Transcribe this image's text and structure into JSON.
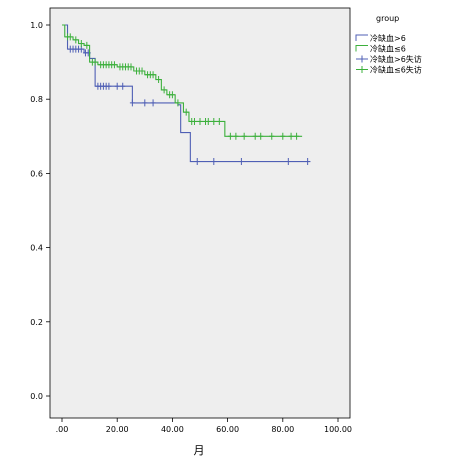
{
  "chart_data": {
    "type": "line",
    "subtype": "kaplan-meier",
    "xlabel": "月",
    "ylabel": "",
    "xlim": [
      0,
      100
    ],
    "ylim": [
      0,
      1.0
    ],
    "x_ticks": [
      ".00",
      "20.00",
      "40.00",
      "60.00",
      "80.00",
      "100.00"
    ],
    "x_tick_values": [
      0,
      20,
      40,
      60,
      80,
      100
    ],
    "y_ticks": [
      "0.0",
      "0.2",
      "0.4",
      "0.6",
      "0.8",
      "1.0"
    ],
    "y_tick_values": [
      0,
      0.2,
      0.4,
      0.6,
      0.8,
      1.0
    ],
    "grid": false,
    "plot_background": "#eeeeee",
    "legend": {
      "title": "group",
      "placement": "outside-right",
      "entries": [
        {
          "label": "冷缺血>6",
          "kind": "line",
          "color": "#4f5fb5"
        },
        {
          "label": "冷缺血≤6",
          "kind": "line",
          "color": "#3cb03c"
        },
        {
          "label": "冷缺血>6失访",
          "kind": "censor",
          "color": "#4f5fb5"
        },
        {
          "label": "冷缺血≤6失访",
          "kind": "censor",
          "color": "#3cb03c"
        }
      ]
    },
    "series": [
      {
        "legend_index": 0,
        "color": "#4f5fb5",
        "steps": [
          [
            0,
            1.0
          ],
          [
            2,
            0.935
          ],
          [
            8,
            0.925
          ],
          [
            10,
            0.91
          ],
          [
            12,
            0.835
          ],
          [
            25.5,
            0.79
          ],
          [
            42,
            0.785
          ],
          [
            43,
            0.71
          ],
          [
            46.5,
            0.632
          ],
          [
            90,
            0.632
          ]
        ],
        "censored": [
          [
            3,
            0.935
          ],
          [
            4,
            0.935
          ],
          [
            5,
            0.935
          ],
          [
            6,
            0.935
          ],
          [
            7,
            0.935
          ],
          [
            8.5,
            0.925
          ],
          [
            9.5,
            0.925
          ],
          [
            13,
            0.835
          ],
          [
            14,
            0.835
          ],
          [
            15,
            0.835
          ],
          [
            16,
            0.835
          ],
          [
            17,
            0.835
          ],
          [
            20,
            0.835
          ],
          [
            22,
            0.835
          ],
          [
            25.5,
            0.79
          ],
          [
            30,
            0.79
          ],
          [
            33,
            0.79
          ],
          [
            49,
            0.632
          ],
          [
            55,
            0.632
          ],
          [
            65,
            0.632
          ],
          [
            82,
            0.632
          ],
          [
            89,
            0.632
          ]
        ]
      },
      {
        "legend_index": 1,
        "color": "#3cb03c",
        "steps": [
          [
            0,
            1.0
          ],
          [
            1,
            0.968
          ],
          [
            4,
            0.96
          ],
          [
            6,
            0.95
          ],
          [
            8,
            0.945
          ],
          [
            10,
            0.9
          ],
          [
            13,
            0.893
          ],
          [
            20,
            0.887
          ],
          [
            26,
            0.876
          ],
          [
            30,
            0.866
          ],
          [
            34,
            0.853
          ],
          [
            36,
            0.825
          ],
          [
            38,
            0.812
          ],
          [
            41,
            0.79
          ],
          [
            44,
            0.765
          ],
          [
            46,
            0.74
          ],
          [
            59,
            0.7
          ],
          [
            87,
            0.7
          ]
        ],
        "censored": [
          [
            2,
            0.968
          ],
          [
            3,
            0.968
          ],
          [
            5,
            0.96
          ],
          [
            7,
            0.95
          ],
          [
            9,
            0.945
          ],
          [
            11,
            0.9
          ],
          [
            12,
            0.9
          ],
          [
            14,
            0.893
          ],
          [
            15,
            0.893
          ],
          [
            16,
            0.893
          ],
          [
            17,
            0.893
          ],
          [
            18,
            0.893
          ],
          [
            19,
            0.893
          ],
          [
            21,
            0.887
          ],
          [
            22,
            0.887
          ],
          [
            23,
            0.887
          ],
          [
            24,
            0.887
          ],
          [
            25,
            0.887
          ],
          [
            27,
            0.876
          ],
          [
            28,
            0.876
          ],
          [
            29,
            0.876
          ],
          [
            31,
            0.866
          ],
          [
            32,
            0.866
          ],
          [
            33,
            0.866
          ],
          [
            35,
            0.853
          ],
          [
            37,
            0.825
          ],
          [
            39,
            0.812
          ],
          [
            40,
            0.812
          ],
          [
            42,
            0.79
          ],
          [
            45,
            0.765
          ],
          [
            47,
            0.74
          ],
          [
            48,
            0.74
          ],
          [
            50,
            0.74
          ],
          [
            52,
            0.74
          ],
          [
            53,
            0.74
          ],
          [
            55,
            0.74
          ],
          [
            57,
            0.74
          ],
          [
            61,
            0.7
          ],
          [
            63,
            0.7
          ],
          [
            66,
            0.7
          ],
          [
            70,
            0.7
          ],
          [
            72,
            0.7
          ],
          [
            76,
            0.7
          ],
          [
            80,
            0.7
          ],
          [
            83,
            0.7
          ],
          [
            85,
            0.7
          ]
        ]
      }
    ]
  }
}
